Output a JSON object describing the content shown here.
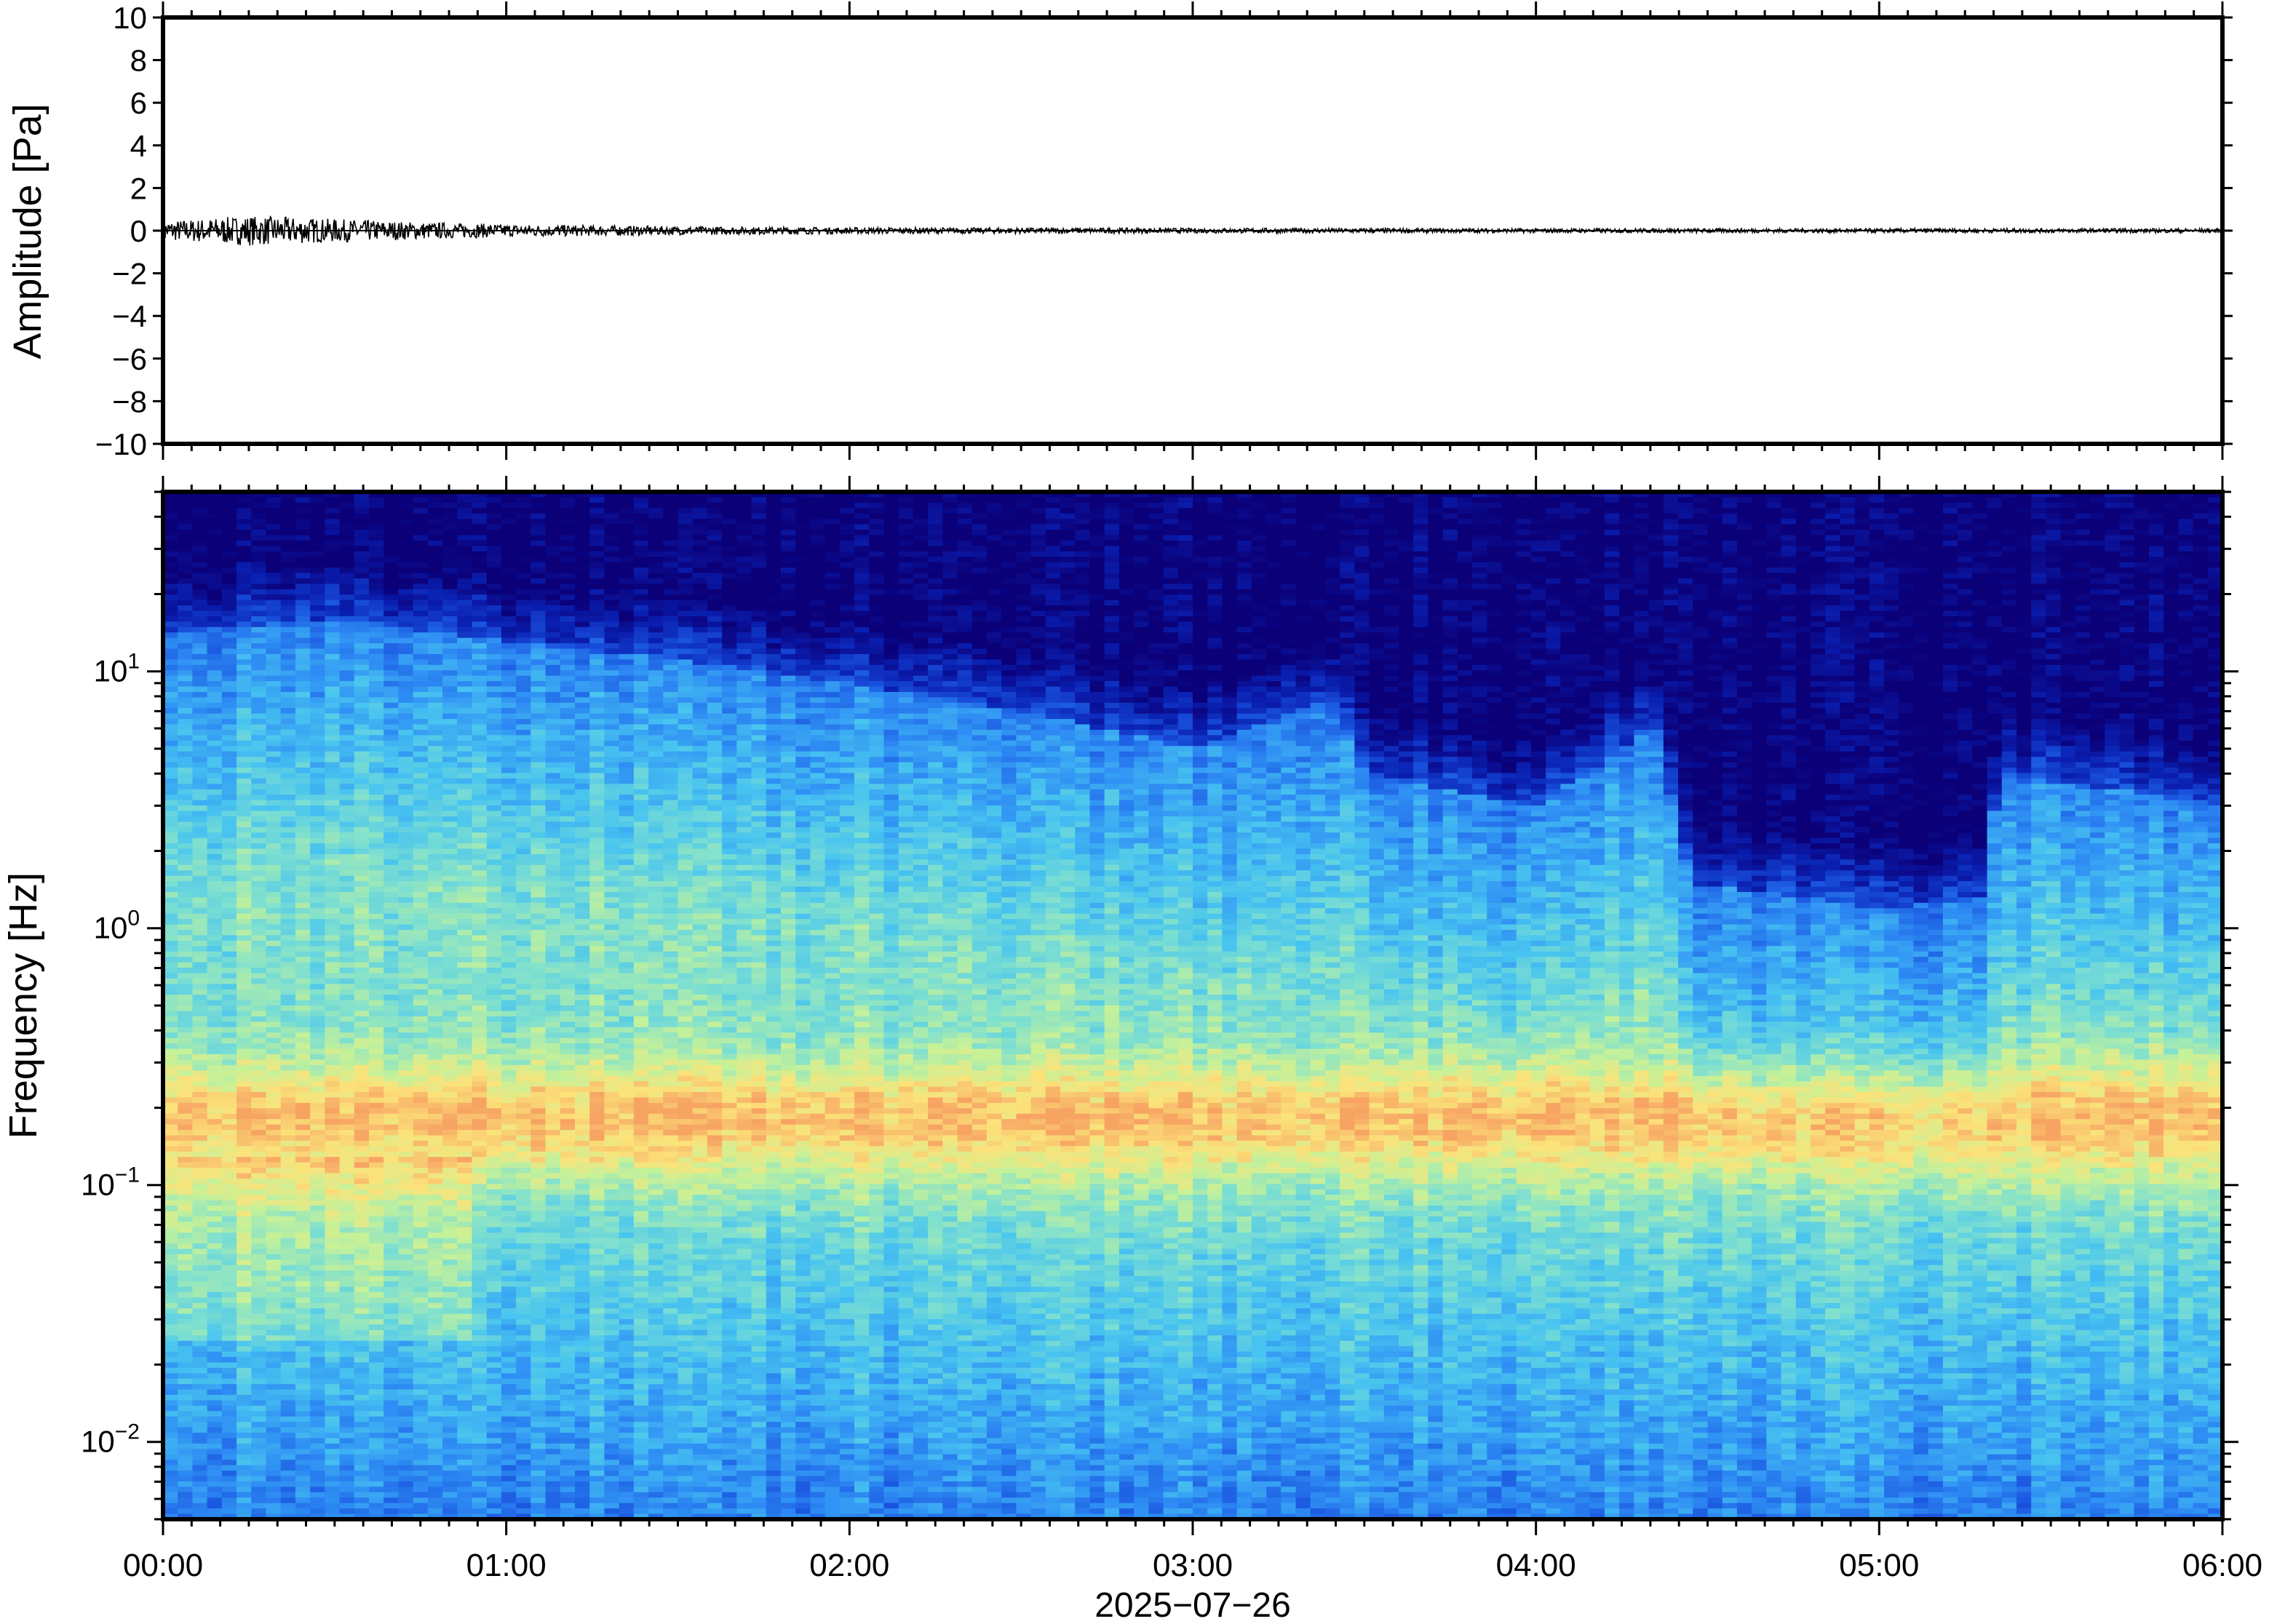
{
  "chart_data": [
    {
      "type": "line",
      "panel": "waveform",
      "ylabel": "Amplitude [Pa]",
      "ylim": [
        -10,
        10
      ],
      "yticks": [
        "10",
        "8",
        "6",
        "4",
        "2",
        "0",
        "−2",
        "−4",
        "−6",
        "−8",
        "−10"
      ],
      "ytick_values": [
        10,
        8,
        6,
        4,
        2,
        0,
        -2,
        -4,
        -6,
        -8,
        -10
      ],
      "x_hours": [
        0,
        0.25,
        0.5,
        0.75,
        1,
        1.5,
        2,
        3,
        4,
        5,
        6
      ],
      "envelope_pa": [
        0.45,
        0.7,
        0.55,
        0.4,
        0.3,
        0.2,
        0.15,
        0.12,
        0.1,
        0.1,
        0.1
      ],
      "trace_color": "#000000",
      "grid": false
    },
    {
      "type": "heatmap",
      "panel": "spectrogram",
      "ylabel": "Frequency [Hz]",
      "yscale": "log",
      "ylim": [
        0.005,
        50
      ],
      "ytick_exponents": [
        "1",
        "0",
        "−1",
        "−2"
      ],
      "ytick_values": [
        10,
        1,
        0.1,
        0.01
      ],
      "colormap": [
        "#0b0078",
        "#0a1fb0",
        "#1a55e0",
        "#2f8ff4",
        "#48c4f0",
        "#7fe0cf",
        "#c5f199",
        "#fbe37a",
        "#f7a463"
      ],
      "upper_noise_edge_hz": [
        {
          "t": 0.0,
          "f": 14
        },
        {
          "t": 0.5,
          "f": 16
        },
        {
          "t": 1.0,
          "f": 13
        },
        {
          "t": 1.5,
          "f": 11
        },
        {
          "t": 2.0,
          "f": 9
        },
        {
          "t": 2.5,
          "f": 7
        },
        {
          "t": 3.0,
          "f": 5
        },
        {
          "t": 3.4,
          "f": 8
        },
        {
          "t": 3.5,
          "f": 4
        },
        {
          "t": 4.0,
          "f": 3
        },
        {
          "t": 4.35,
          "f": 6
        },
        {
          "t": 4.45,
          "f": 1.5
        },
        {
          "t": 5.0,
          "f": 1.2
        },
        {
          "t": 5.3,
          "f": 1.3
        },
        {
          "t": 5.35,
          "f": 4
        },
        {
          "t": 6.0,
          "f": 3
        }
      ],
      "microbarom_peak_hz": 0.18,
      "grid": false
    }
  ],
  "xaxis": {
    "tick_labels": [
      "00:00",
      "01:00",
      "02:00",
      "03:00",
      "04:00",
      "05:00",
      "06:00"
    ],
    "xlim_hours": [
      0,
      6
    ],
    "date_label": "2025−07−26"
  }
}
